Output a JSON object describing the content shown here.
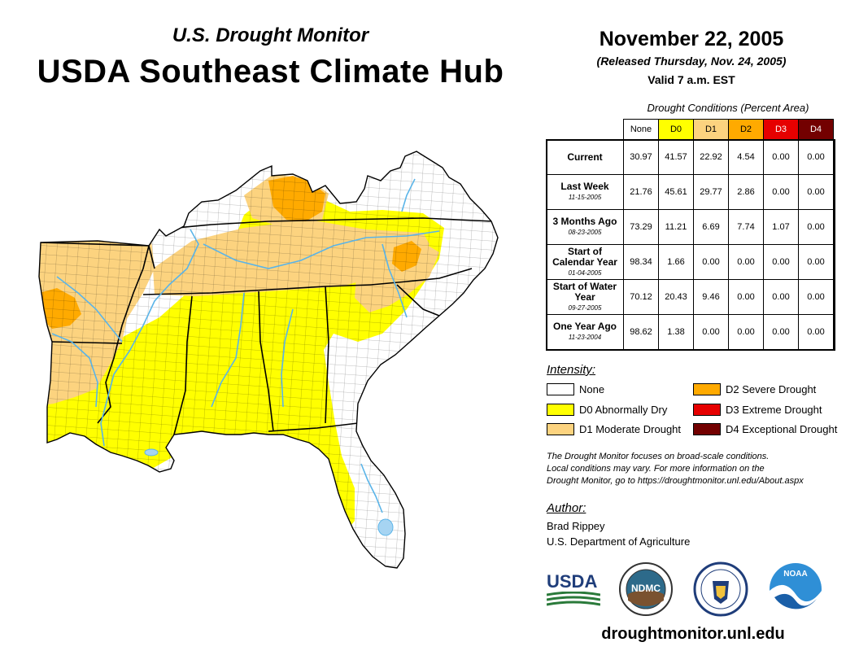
{
  "header": {
    "subtitle": "U.S. Drought Monitor",
    "title": "USDA Southeast Climate Hub",
    "date": "November 22, 2005",
    "released": "(Released Thursday, Nov. 24, 2005)",
    "valid": "Valid 7 a.m. EST"
  },
  "table": {
    "caption": "Drought Conditions (Percent Area)",
    "columns": [
      "None",
      "D0",
      "D1",
      "D2",
      "D3",
      "D4"
    ],
    "rows": [
      {
        "label": "Current",
        "date": "",
        "values": [
          "30.97",
          "41.57",
          "22.92",
          "4.54",
          "0.00",
          "0.00"
        ]
      },
      {
        "label": "Last Week",
        "date": "11-15-2005",
        "values": [
          "21.76",
          "45.61",
          "29.77",
          "2.86",
          "0.00",
          "0.00"
        ]
      },
      {
        "label": "3 Months Ago",
        "date": "08-23-2005",
        "values": [
          "73.29",
          "11.21",
          "6.69",
          "7.74",
          "1.07",
          "0.00"
        ]
      },
      {
        "label": "Start of Calendar Year",
        "date": "01-04-2005",
        "values": [
          "98.34",
          "1.66",
          "0.00",
          "0.00",
          "0.00",
          "0.00"
        ]
      },
      {
        "label": "Start of Water Year",
        "date": "09-27-2005",
        "values": [
          "70.12",
          "20.43",
          "9.46",
          "0.00",
          "0.00",
          "0.00"
        ]
      },
      {
        "label": "One Year Ago",
        "date": "11-23-2004",
        "values": [
          "98.62",
          "1.38",
          "0.00",
          "0.00",
          "0.00",
          "0.00"
        ]
      }
    ]
  },
  "legend": {
    "heading": "Intensity:",
    "items": [
      {
        "label": "None",
        "color": "#ffffff"
      },
      {
        "label": "D0 Abnormally Dry",
        "color": "#ffff00"
      },
      {
        "label": "D1 Moderate Drought",
        "color": "#fcd37f"
      },
      {
        "label": "D2 Severe Drought",
        "color": "#ffaa00"
      },
      {
        "label": "D3 Extreme Drought",
        "color": "#e60000"
      },
      {
        "label": "D4 Exceptional Drought",
        "color": "#730000"
      }
    ]
  },
  "note": {
    "line1": "The Drought Monitor focuses on broad-scale conditions.",
    "line2": "Local conditions may vary. For more information on the",
    "line3": "Drought Monitor, go to https://droughtmonitor.unl.edu/About.aspx"
  },
  "author": {
    "heading": "Author:",
    "name": "Brad Rippey",
    "org": "U.S. Department of Agriculture"
  },
  "logos": {
    "usda": "USDA",
    "ndmc": "NDMC",
    "noaa": "NOAA"
  },
  "footer_url": "droughtmonitor.unl.edu",
  "colors": {
    "none": "#ffffff",
    "d0": "#ffff00",
    "d1": "#fcd37f",
    "d2": "#ffaa00",
    "d3": "#e60000",
    "d4": "#730000",
    "water": "#5ab4e8",
    "lake": "#a6d4f2"
  }
}
